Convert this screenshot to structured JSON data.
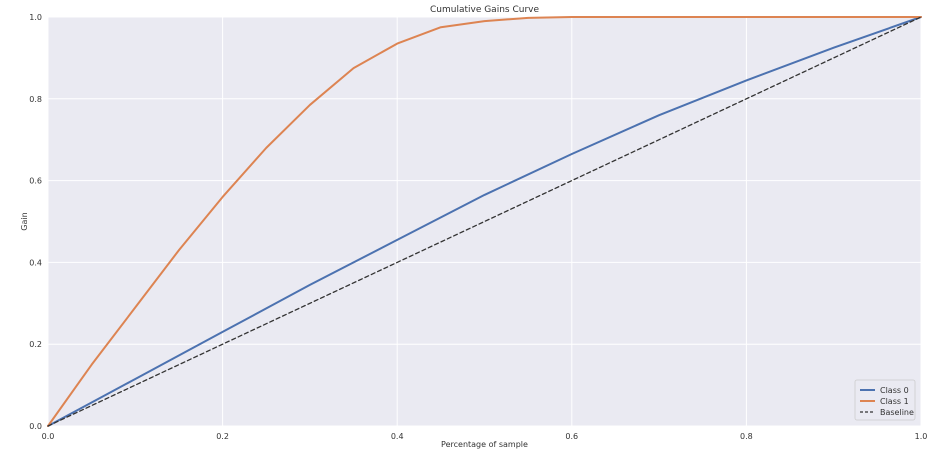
{
  "chart_data": {
    "type": "line",
    "title": "Cumulative Gains Curve",
    "xlabel": "Percentage of sample",
    "ylabel": "Gain",
    "xlim": [
      0.0,
      1.0
    ],
    "ylim": [
      0.0,
      1.0
    ],
    "xticks": [
      "0.0",
      "0.2",
      "0.4",
      "0.6",
      "0.8",
      "1.0"
    ],
    "yticks": [
      "0.0",
      "0.2",
      "0.4",
      "0.6",
      "0.8",
      "1.0"
    ],
    "grid": true,
    "legend_position": "bottom-right",
    "background_color": "#EAEAF2",
    "series": [
      {
        "name": "Class 0",
        "color": "#4C72B0",
        "dash": "solid",
        "x": [
          0.0,
          0.1,
          0.2,
          0.3,
          0.4,
          0.5,
          0.6,
          0.7,
          0.8,
          0.9,
          1.0
        ],
        "y": [
          0.0,
          0.115,
          0.23,
          0.345,
          0.455,
          0.565,
          0.665,
          0.76,
          0.845,
          0.925,
          1.0
        ]
      },
      {
        "name": "Class 1",
        "color": "#DD8452",
        "dash": "solid",
        "x": [
          0.0,
          0.05,
          0.1,
          0.15,
          0.2,
          0.25,
          0.3,
          0.35,
          0.4,
          0.45,
          0.5,
          0.55,
          0.6,
          0.7,
          0.8,
          0.9,
          1.0
        ],
        "y": [
          0.0,
          0.15,
          0.29,
          0.43,
          0.56,
          0.68,
          0.785,
          0.875,
          0.935,
          0.975,
          0.99,
          0.998,
          1.0,
          1.0,
          1.0,
          1.0,
          1.0
        ]
      },
      {
        "name": "Baseline",
        "color": "#333333",
        "dash": "dashed",
        "x": [
          0.0,
          1.0
        ],
        "y": [
          0.0,
          1.0
        ]
      }
    ]
  }
}
